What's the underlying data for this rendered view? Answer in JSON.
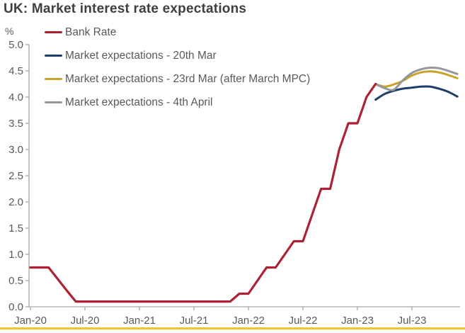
{
  "title": "UK: Market interest rate expectations",
  "unit_label": "%",
  "colors": {
    "title_text": "#3f3f3f",
    "tick_text": "#595959",
    "axis_line": "#a6a6a6",
    "accent_bar": "#f2c72e",
    "background": "#ffffff"
  },
  "chart_data": {
    "type": "line",
    "title": "UK: Market interest rate expectations",
    "ylabel": "%",
    "ylim": [
      0.0,
      5.0
    ],
    "ytick_step": 0.5,
    "ytick_labels": [
      "0.0",
      "0.5",
      "1.0",
      "1.5",
      "2.0",
      "2.5",
      "3.0",
      "3.5",
      "4.0",
      "4.5",
      "5.0"
    ],
    "grid": false,
    "legend_position": "top-left",
    "x_axis": {
      "unit": "month",
      "start": "Jan-20",
      "tick_labels": [
        "Jan-20",
        "Jul-20",
        "Jan-21",
        "Jul-21",
        "Jan-22",
        "Jul-22",
        "Jan-23",
        "Jul-23"
      ],
      "months_between_ticks": 6
    },
    "series": [
      {
        "name": "Bank Rate",
        "color": "#ad2132",
        "smooth": false,
        "start_month_index": 0,
        "values": [
          0.75,
          0.75,
          0.75,
          0.53,
          0.31,
          0.1,
          0.1,
          0.1,
          0.1,
          0.1,
          0.1,
          0.1,
          0.1,
          0.1,
          0.1,
          0.1,
          0.1,
          0.1,
          0.1,
          0.1,
          0.1,
          0.1,
          0.1,
          0.25,
          0.25,
          0.5,
          0.75,
          0.75,
          1.0,
          1.25,
          1.25,
          1.75,
          2.25,
          2.25,
          3.0,
          3.5,
          3.5,
          4.0,
          4.25
        ]
      },
      {
        "name": "Market expectations - 20th Mar",
        "color": "#1c3e68",
        "smooth": true,
        "start_month_index": 38,
        "values": [
          3.95,
          4.06,
          4.12,
          4.16,
          4.18,
          4.2,
          4.2,
          4.16,
          4.1,
          4.01
        ]
      },
      {
        "name": "Market expectations - 23rd Mar (after March MPC)",
        "color": "#c9a227",
        "smooth": true,
        "start_month_index": 38,
        "values": [
          4.25,
          4.2,
          4.24,
          4.31,
          4.41,
          4.47,
          4.49,
          4.47,
          4.42,
          4.36
        ]
      },
      {
        "name": "Market expectations - 4th April",
        "color": "#95989a",
        "smooth": true,
        "start_month_index": 38,
        "values": [
          4.25,
          4.17,
          4.14,
          4.32,
          4.46,
          4.53,
          4.56,
          4.55,
          4.5,
          4.44
        ]
      }
    ]
  }
}
